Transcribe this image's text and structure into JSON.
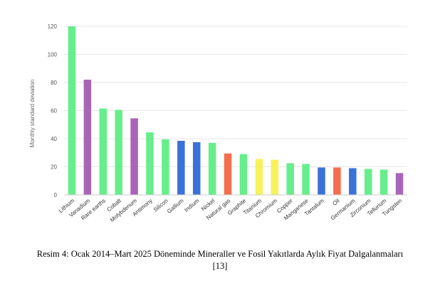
{
  "chart_data": {
    "type": "bar",
    "title": "",
    "xlabel": "",
    "ylabel": "Monthly standard deviation",
    "ylim": [
      0,
      120
    ],
    "yticks": [
      0,
      20,
      40,
      60,
      80,
      100,
      120
    ],
    "grid": true,
    "categories": [
      "Lithium",
      "Vanadium",
      "Rare earths",
      "Cobalt",
      "Molybdenum",
      "Antimony",
      "Silicon",
      "Gallium",
      "Indium",
      "Nickel",
      "Natural gas",
      "Graphite",
      "Titanium",
      "Chromium",
      "Copper",
      "Manganese",
      "Tantalum",
      "Oil",
      "Germanium",
      "Zirconium",
      "Tellurium",
      "Tungsten"
    ],
    "values": [
      120,
      82,
      61.5,
      60.5,
      54.5,
      44.5,
      39.5,
      38.5,
      37.5,
      37,
      29.5,
      29,
      25.5,
      25,
      22.5,
      22,
      19.5,
      19.5,
      19,
      18.5,
      18,
      15.5
    ],
    "colors": [
      "#66ee8c",
      "#a865b8",
      "#66ee8c",
      "#66ee8c",
      "#a865b8",
      "#66ee8c",
      "#66ee8c",
      "#3b72d9",
      "#3b72d9",
      "#66ee8c",
      "#f36f4e",
      "#66ee8c",
      "#f7f25a",
      "#f7f25a",
      "#66ee8c",
      "#66ee8c",
      "#3b72d9",
      "#f36f4e",
      "#3b72d9",
      "#66ee8c",
      "#66ee8c",
      "#a865b8"
    ]
  },
  "caption": {
    "line1": "Resim 4: Ocak 2014–Mart 2025 Döneminde Mineraller ve Fosil Yakıtlarda Aylık Fiyat Dalgalanmaları",
    "line2": "[13]"
  }
}
